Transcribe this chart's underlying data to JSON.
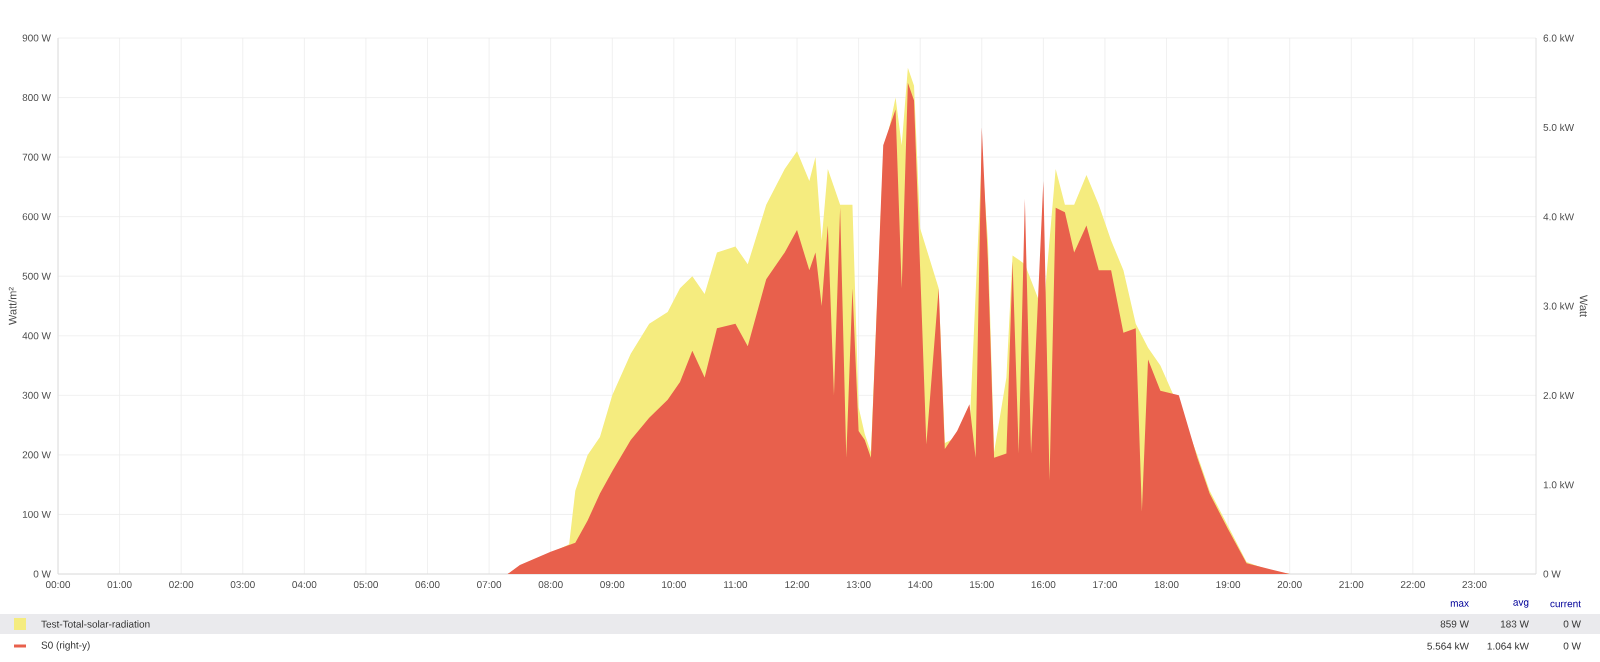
{
  "chart_data": {
    "type": "area",
    "xlabel": null,
    "ylabel": "Watt/m²",
    "y2label": "Watt",
    "xlim": [
      0,
      24
    ],
    "ylim": [
      0,
      900
    ],
    "y2lim": [
      0,
      6
    ],
    "xticks": [
      {
        "value": 0,
        "label": "00:00"
      },
      {
        "value": 1,
        "label": "01:00"
      },
      {
        "value": 2,
        "label": "02:00"
      },
      {
        "value": 3,
        "label": "03:00"
      },
      {
        "value": 4,
        "label": "04:00"
      },
      {
        "value": 5,
        "label": "05:00"
      },
      {
        "value": 6,
        "label": "06:00"
      },
      {
        "value": 7,
        "label": "07:00"
      },
      {
        "value": 8,
        "label": "08:00"
      },
      {
        "value": 9,
        "label": "09:00"
      },
      {
        "value": 10,
        "label": "10:00"
      },
      {
        "value": 11,
        "label": "11:00"
      },
      {
        "value": 12,
        "label": "12:00"
      },
      {
        "value": 13,
        "label": "13:00"
      },
      {
        "value": 14,
        "label": "14:00"
      },
      {
        "value": 15,
        "label": "15:00"
      },
      {
        "value": 16,
        "label": "16:00"
      },
      {
        "value": 17,
        "label": "17:00"
      },
      {
        "value": 18,
        "label": "18:00"
      },
      {
        "value": 19,
        "label": "19:00"
      },
      {
        "value": 20,
        "label": "20:00"
      },
      {
        "value": 21,
        "label": "21:00"
      },
      {
        "value": 22,
        "label": "22:00"
      },
      {
        "value": 23,
        "label": "23:00"
      }
    ],
    "yticks": [
      {
        "value": 0,
        "label": "0 W"
      },
      {
        "value": 100,
        "label": "100 W"
      },
      {
        "value": 200,
        "label": "200 W"
      },
      {
        "value": 300,
        "label": "300 W"
      },
      {
        "value": 400,
        "label": "400 W"
      },
      {
        "value": 500,
        "label": "500 W"
      },
      {
        "value": 600,
        "label": "600 W"
      },
      {
        "value": 700,
        "label": "700 W"
      },
      {
        "value": 800,
        "label": "800 W"
      },
      {
        "value": 900,
        "label": "900 W"
      }
    ],
    "y2ticks": [
      {
        "value": 0,
        "label": "0 W"
      },
      {
        "value": 1,
        "label": "1.0 kW"
      },
      {
        "value": 2,
        "label": "2.0 kW"
      },
      {
        "value": 3,
        "label": "3.0 kW"
      },
      {
        "value": 4,
        "label": "4.0 kW"
      },
      {
        "value": 5,
        "label": "5.0 kW"
      },
      {
        "value": 6,
        "label": "6.0 kW"
      }
    ],
    "grid": true,
    "legend": "bottom",
    "series": [
      {
        "name": "Test-Total-solar-radiation",
        "color": "#f5ec7f",
        "x": [
          0,
          7.3,
          7.5,
          8.0,
          8.3,
          8.4,
          8.6,
          8.8,
          9.0,
          9.3,
          9.6,
          9.9,
          10.1,
          10.3,
          10.5,
          10.7,
          11.0,
          11.2,
          11.5,
          11.8,
          12.0,
          12.2,
          12.3,
          12.4,
          12.5,
          12.6,
          12.7,
          12.8,
          12.9,
          13.0,
          13.1,
          13.2,
          13.4,
          13.6,
          13.7,
          13.8,
          13.9,
          14.0,
          14.1,
          14.3,
          14.4,
          14.6,
          14.8,
          14.9,
          15.0,
          15.1,
          15.2,
          15.4,
          15.5,
          15.6,
          15.7,
          15.8,
          16.0,
          16.1,
          16.2,
          16.35,
          16.5,
          16.7,
          16.9,
          17.1,
          17.3,
          17.5,
          17.6,
          17.7,
          17.9,
          18.2,
          18.5,
          18.7,
          19.0,
          19.3,
          19.7,
          20.0,
          24
        ],
        "values": [
          0,
          0,
          5,
          35,
          50,
          140,
          200,
          230,
          300,
          370,
          420,
          440,
          480,
          500,
          470,
          540,
          550,
          520,
          620,
          680,
          710,
          660,
          700,
          560,
          680,
          null,
          620,
          null,
          620,
          280,
          235,
          205,
          700,
          800,
          720,
          850,
          820,
          580,
          null,
          480,
          220,
          230,
          240,
          null,
          700,
          560,
          205,
          330,
          535,
          null,
          520,
          null,
          440,
          null,
          680,
          620,
          620,
          670,
          620,
          560,
          510,
          420,
          null,
          380,
          350,
          280,
          200,
          140,
          80,
          20,
          5,
          0,
          0
        ]
      },
      {
        "name": "S0 (right-y)",
        "color": "#e8604c",
        "axis": "y2",
        "x": [
          0,
          7.3,
          7.5,
          8.0,
          8.4,
          8.6,
          8.8,
          9.0,
          9.3,
          9.6,
          9.9,
          10.1,
          10.3,
          10.5,
          10.7,
          11.0,
          11.2,
          11.5,
          11.8,
          12.0,
          12.2,
          12.3,
          12.4,
          12.5,
          12.6,
          12.7,
          12.8,
          12.9,
          13.0,
          13.1,
          13.2,
          13.4,
          13.6,
          13.7,
          13.8,
          13.9,
          14.0,
          14.1,
          14.3,
          14.4,
          14.6,
          14.8,
          14.9,
          15.0,
          15.1,
          15.2,
          15.4,
          15.5,
          15.6,
          15.7,
          15.8,
          16.0,
          16.1,
          16.2,
          16.35,
          16.5,
          16.7,
          16.9,
          17.1,
          17.3,
          17.5,
          17.6,
          17.7,
          17.9,
          18.2,
          18.5,
          18.7,
          19.0,
          19.3,
          19.7,
          20.0,
          24
        ],
        "values": [
          0,
          0,
          0.1,
          0.25,
          0.35,
          0.6,
          0.9,
          1.15,
          1.5,
          1.75,
          1.95,
          2.15,
          2.5,
          2.2,
          2.75,
          2.8,
          2.55,
          3.3,
          3.6,
          3.85,
          3.4,
          3.6,
          3.0,
          3.9,
          2.0,
          4.1,
          1.3,
          3.2,
          1.6,
          1.5,
          1.3,
          4.8,
          5.2,
          3.2,
          5.5,
          5.3,
          3.4,
          1.45,
          3.2,
          1.4,
          1.6,
          1.9,
          1.3,
          5.0,
          3.5,
          1.3,
          1.35,
          3.5,
          1.35,
          4.2,
          1.35,
          4.4,
          1.05,
          4.1,
          4.05,
          3.6,
          3.9,
          3.4,
          3.4,
          2.7,
          2.75,
          0.7,
          2.4,
          2.05,
          2.0,
          1.3,
          0.9,
          0.5,
          0.12,
          0.05,
          0,
          0
        ]
      }
    ],
    "annotations": [
      "max",
      "avg",
      "current",
      "859 W",
      "183 W",
      "0 W",
      "5.564 kW",
      "1.064 kW",
      "0 W"
    ]
  }
}
